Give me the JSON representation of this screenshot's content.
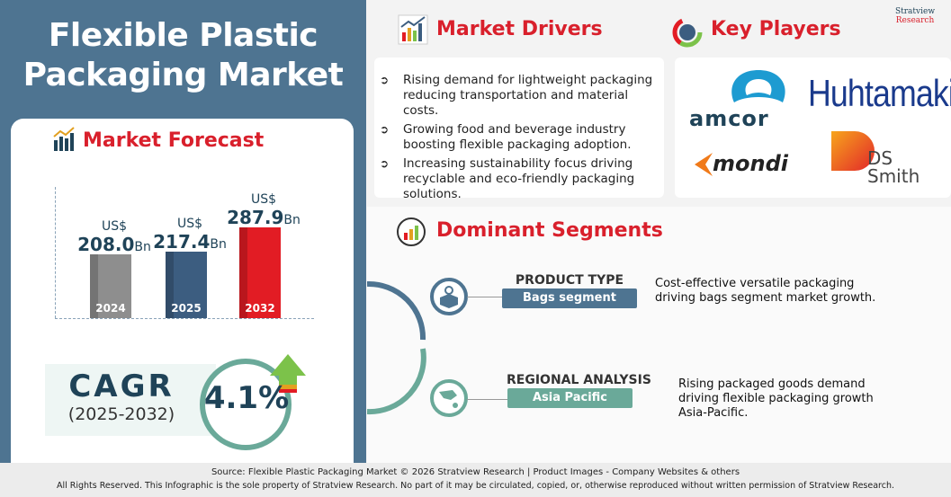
{
  "title": "Flexible Plastic Packaging Market",
  "forecast": {
    "heading": "Market Forecast",
    "icon": "bar-chart-icon"
  },
  "chart_data": {
    "type": "bar",
    "categories": [
      "2024",
      "2025",
      "2032"
    ],
    "values": [
      208.0,
      217.4,
      287.9
    ],
    "currency": "US$",
    "unit": "Bn",
    "value_labels": [
      "208.0",
      "217.4",
      "287.9"
    ],
    "colors": [
      "#8e8e8e",
      "#3c5d80",
      "#e21c24"
    ]
  },
  "cagr": {
    "label": "CAGR",
    "period": "(2025-2032)",
    "value": "4.1%"
  },
  "drivers": {
    "heading": "Market Drivers",
    "items": [
      "Rising demand for lightweight packaging reducing transportation and material costs.",
      "Growing food and beverage industry boosting flexible packaging adoption.",
      "Increasing sustainability focus driving recyclable and eco-friendly packaging solutions."
    ]
  },
  "players": {
    "heading": "Key Players",
    "logos": [
      "amcor",
      "Huhtamaki",
      "mondi",
      "DS Smith"
    ]
  },
  "brand": {
    "name": "Stratview",
    "sub": "Research"
  },
  "segments": {
    "heading": "Dominant Segments",
    "items": [
      {
        "label": "PRODUCT TYPE",
        "value": "Bags segment",
        "desc": "Cost-effective versatile packaging driving bags segment market growth.",
        "color": "#4e7491",
        "icon": "box-gear-icon"
      },
      {
        "label": "REGIONAL ANALYSIS",
        "value": "Asia Pacific",
        "desc": "Rising packaged goods demand driving flexible packaging growth Asia-Pacific.",
        "color": "#6aa999",
        "icon": "asia-map-icon"
      }
    ]
  },
  "footer": {
    "source": "Source:  Flexible Plastic Packaging Market © 2026 Stratview Research | Product Images  - Company Websites & others",
    "rights": "All Rights Reserved. This Infographic is the sole property of Stratview Research. No part of it may be circulated, copied, or, otherwise reproduced without written permission of Stratview Research."
  }
}
